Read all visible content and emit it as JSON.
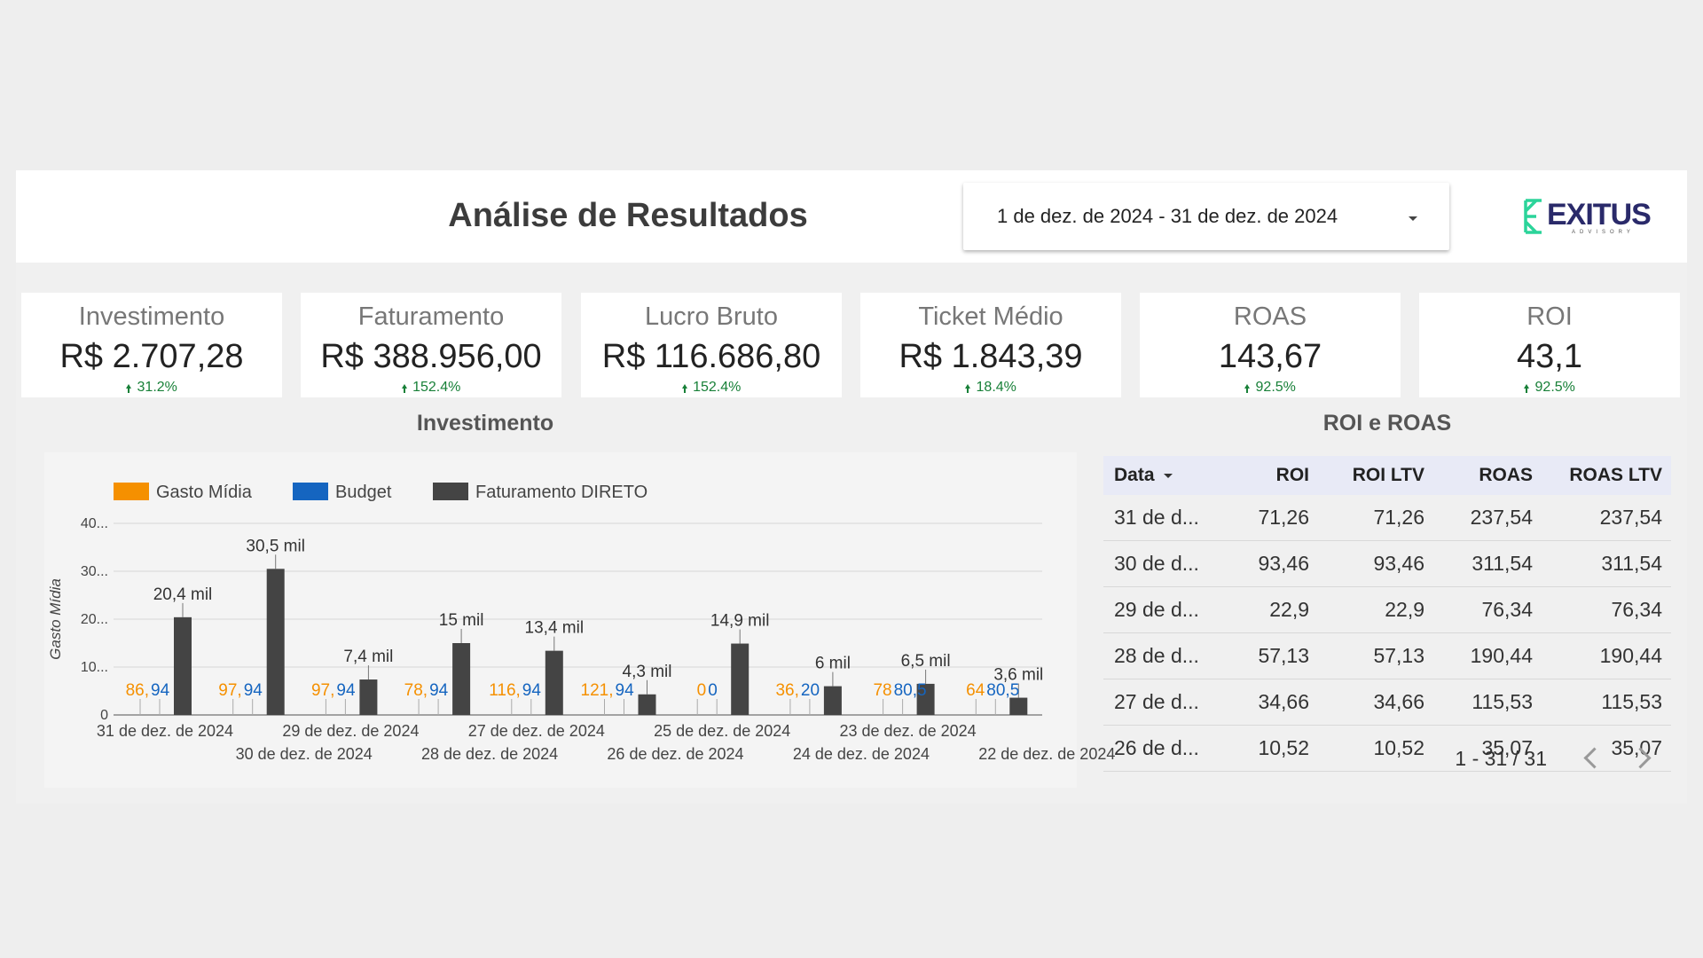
{
  "header": {
    "title": "Análise de Resultados",
    "date_range": "1 de dez. de 2024 - 31 de dez. de 2024",
    "logo_text": "EXITUS",
    "logo_sub": "ADVISORY",
    "logo_mark": "XE",
    "logo_color": "#2a2a6a",
    "logo_mark_color": "#2bd49a"
  },
  "kpis": [
    {
      "label": "Investimento",
      "value": "R$ 2.707,28",
      "delta": "31.2%"
    },
    {
      "label": "Faturamento",
      "value": "R$ 388.956,00",
      "delta": "152.4%"
    },
    {
      "label": "Lucro Bruto",
      "value": "R$ 116.686,80",
      "delta": "152.4%"
    },
    {
      "label": "Ticket Médio",
      "value": "R$ 1.843,39",
      "delta": "18.4%"
    },
    {
      "label": "ROAS",
      "value": "143,67",
      "delta": "92.5%"
    },
    {
      "label": "ROI",
      "value": "43,1",
      "delta": "92.5%"
    }
  ],
  "chart_section_title": "Investimento",
  "table_section_title": "ROI e ROAS",
  "chart_data": {
    "type": "bar",
    "title": "Investimento",
    "ylabel": "Gasto Mídia",
    "xlabel": "",
    "ylim": [
      0,
      40000
    ],
    "y_ticks": [
      "0",
      "10...",
      "20...",
      "30...",
      "40..."
    ],
    "legend_position": "top-left",
    "grid": true,
    "categories": [
      "31 de dez. de 2024",
      "30 de dez. de 2024",
      "29 de dez. de 2024",
      "28 de dez. de 2024",
      "27 de dez. de 2024",
      "26 de dez. de 2024",
      "25 de dez. de 2024",
      "24 de dez. de 2024",
      "23 de dez. de 2024",
      "22 de dez. de 2024"
    ],
    "series": [
      {
        "name": "Gasto Mídia",
        "color": "#f59000",
        "values": [
          86,
          97,
          97,
          78,
          116,
          121,
          0,
          36,
          78,
          64
        ],
        "labels": [
          "86,",
          "97,",
          "97,",
          "78,",
          "116,",
          "121,",
          "0",
          "36,",
          "78",
          "64"
        ]
      },
      {
        "name": "Budget",
        "color": "#1565c0",
        "values": [
          94,
          94,
          94,
          94,
          94,
          94,
          0,
          20,
          80.5,
          80.5
        ],
        "labels": [
          "94",
          "94",
          "94",
          "94",
          "94",
          "94",
          "0",
          "20",
          "80,5",
          "80,5"
        ]
      },
      {
        "name": "Faturamento DIRETO",
        "color": "#444444",
        "values": [
          20400,
          30500,
          7400,
          15000,
          13400,
          4300,
          14900,
          6000,
          6500,
          3600
        ],
        "labels": [
          "20,4 mil",
          "30,5 mil",
          "7,4 mil",
          "15 mil",
          "13,4 mil",
          "4,3 mil",
          "14,9 mil",
          "6 mil",
          "6,5 mil",
          "3,6 mil"
        ]
      }
    ]
  },
  "table": {
    "columns": [
      "Data",
      "ROI",
      "ROI LTV",
      "ROAS",
      "ROAS LTV"
    ],
    "rows": [
      [
        "31 de d...",
        "71,26",
        "71,26",
        "237,54",
        "237,54"
      ],
      [
        "30 de d...",
        "93,46",
        "93,46",
        "311,54",
        "311,54"
      ],
      [
        "29 de d...",
        "22,9",
        "22,9",
        "76,34",
        "76,34"
      ],
      [
        "28 de d...",
        "57,13",
        "57,13",
        "190,44",
        "190,44"
      ],
      [
        "27 de d...",
        "34,66",
        "34,66",
        "115,53",
        "115,53"
      ],
      [
        "26 de d...",
        "10,52",
        "10,52",
        "35,07",
        "35,07"
      ]
    ],
    "pagination": "1 - 31 / 31"
  }
}
